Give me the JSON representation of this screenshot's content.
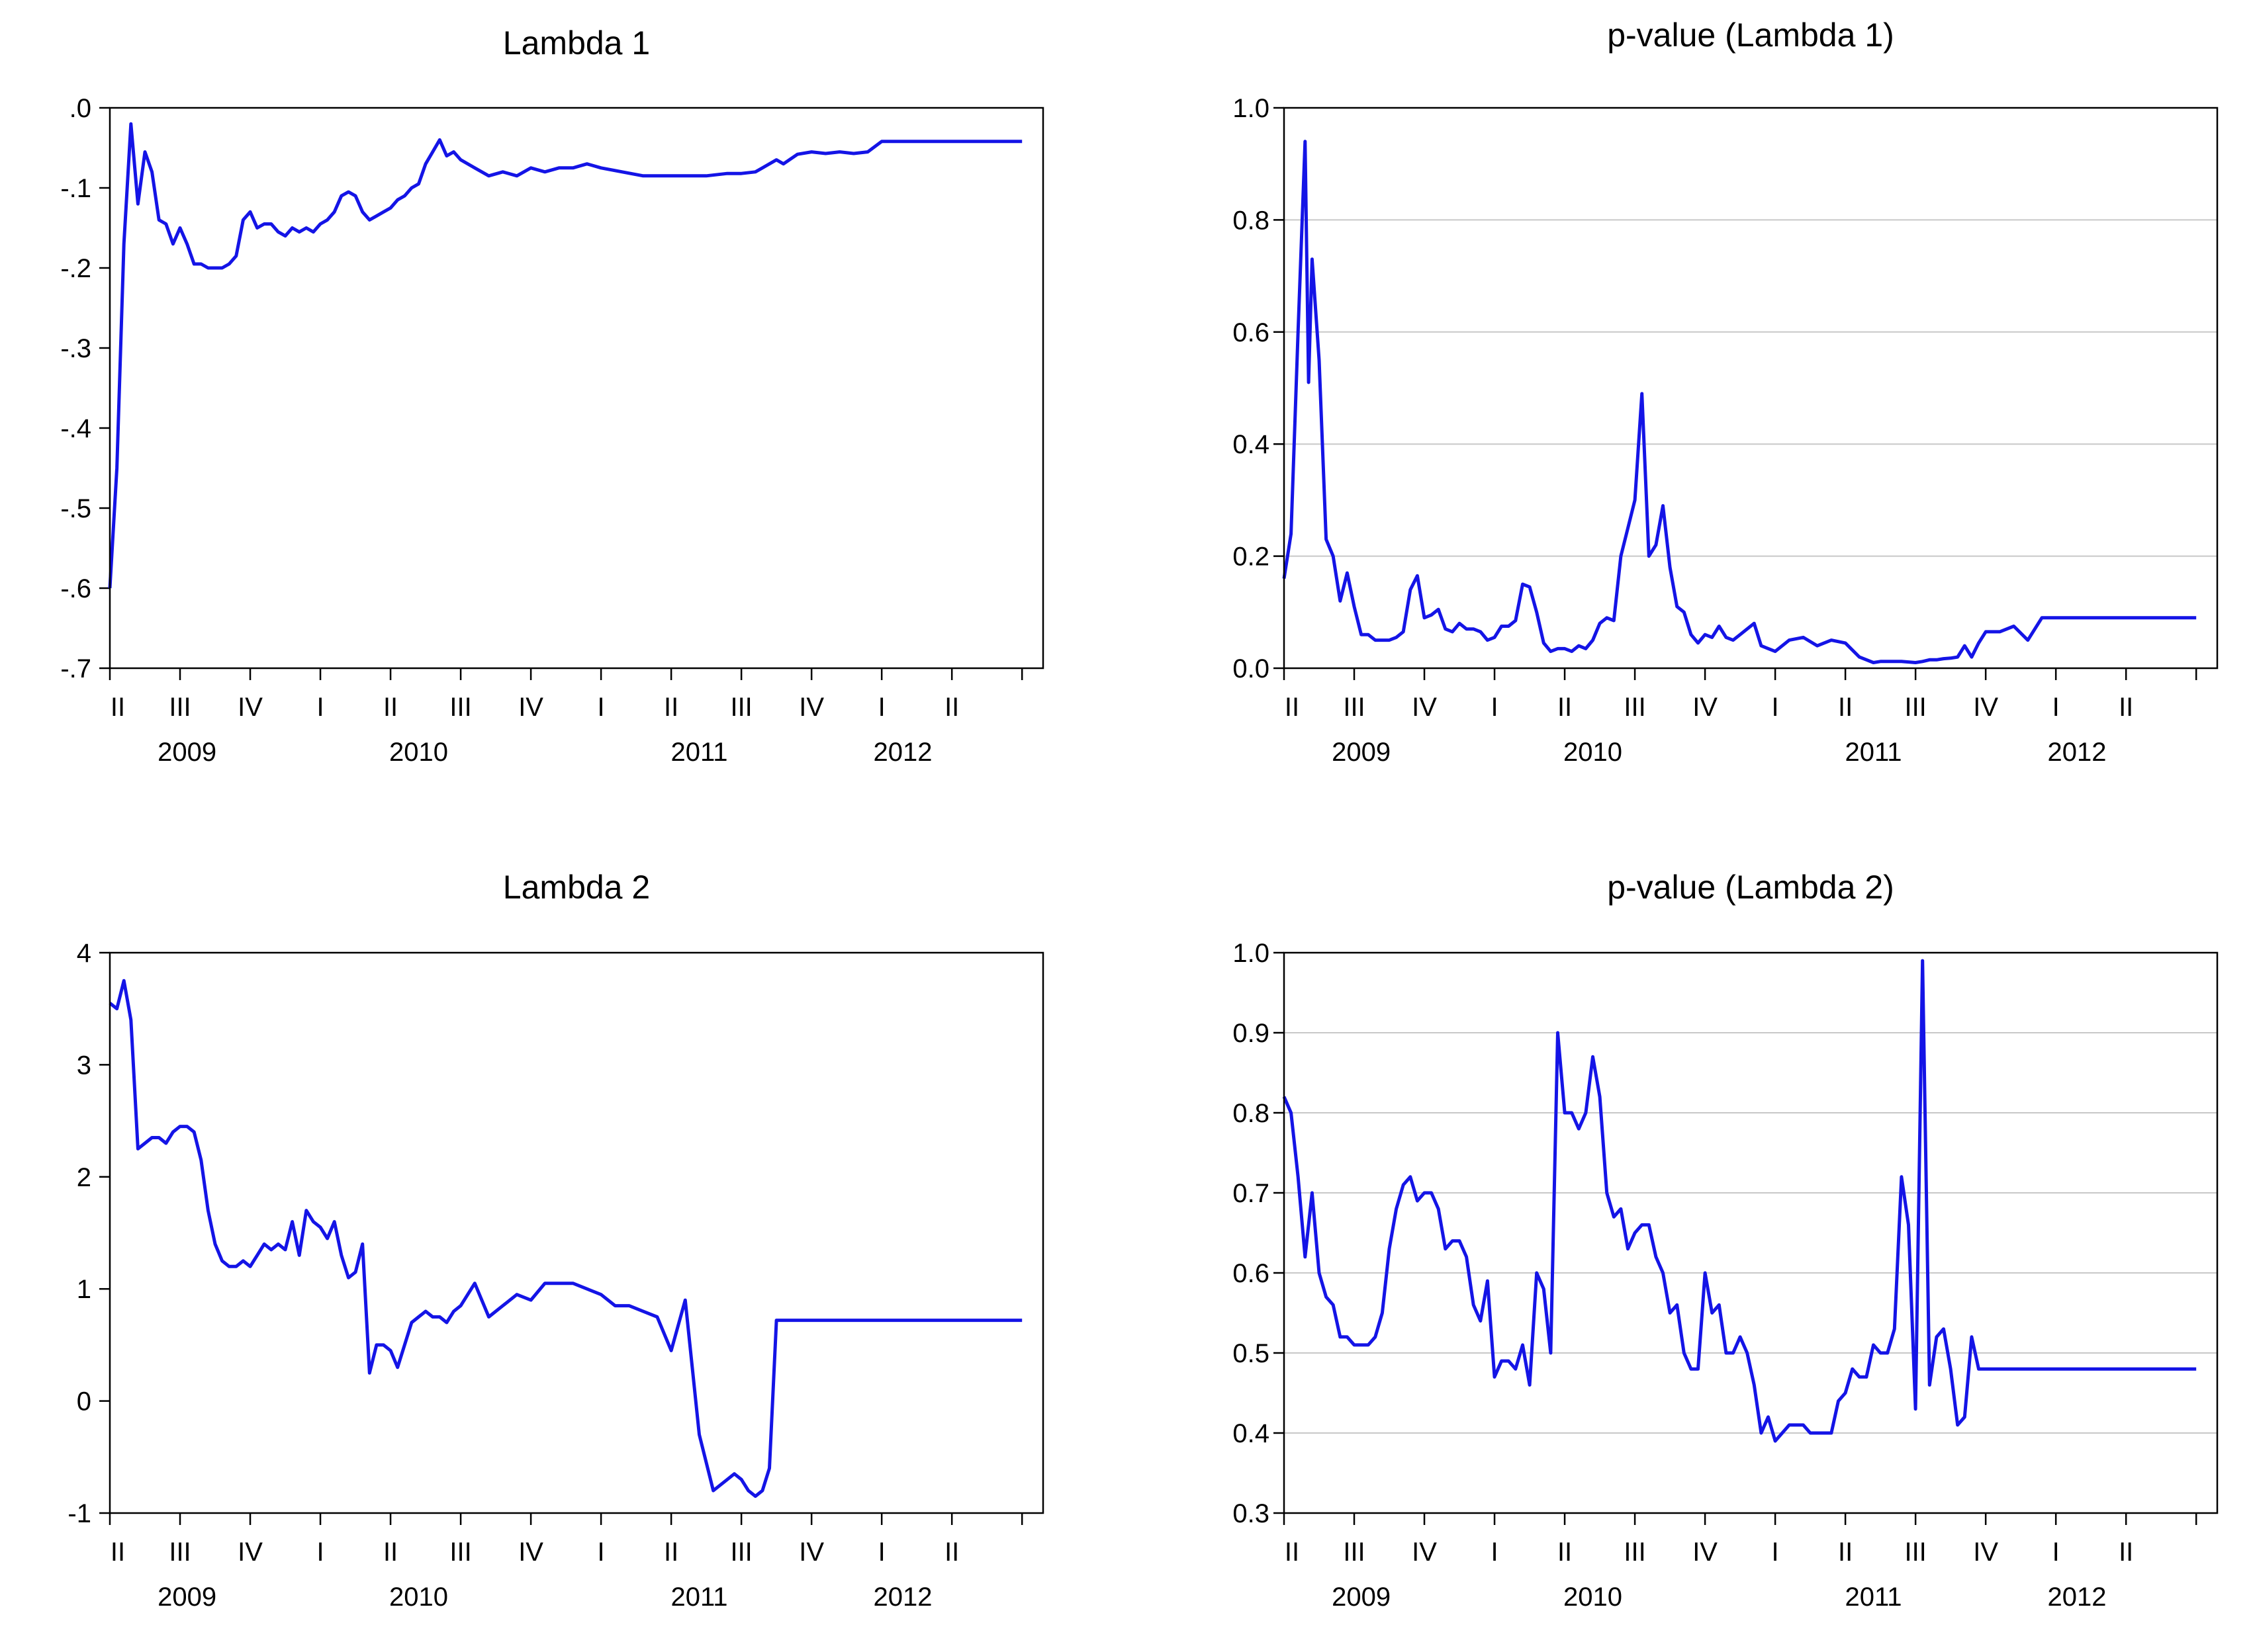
{
  "colors": {
    "line": "#1414e6",
    "grid": "#c8c8c8",
    "axis": "#000000",
    "background": "#ffffff"
  },
  "x_axis": {
    "quarter_labels": [
      "II",
      "III",
      "IV",
      "I",
      "II",
      "III",
      "IV",
      "I",
      "II",
      "III",
      "IV",
      "I",
      "II"
    ],
    "year_labels": [
      "2009",
      "2010",
      "2011",
      "2012"
    ]
  },
  "chart_data": [
    {
      "type": "line",
      "title": "Lambda 1",
      "ylim": [
        -0.7,
        0.0
      ],
      "yticks": [
        0.0,
        -0.1,
        -0.2,
        -0.3,
        -0.4,
        -0.5,
        -0.6,
        -0.7
      ],
      "ytick_labels": [
        ".0",
        "-.1",
        "-.2",
        "-.3",
        "-.4",
        "-.5",
        "-.6",
        "-.7"
      ],
      "grid": false,
      "x": [
        0.0,
        0.1,
        0.2,
        0.3,
        0.4,
        0.5,
        0.6,
        0.7,
        0.8,
        0.9,
        1.0,
        1.1,
        1.2,
        1.3,
        1.4,
        1.5,
        1.6,
        1.7,
        1.8,
        1.9,
        2.0,
        2.1,
        2.2,
        2.3,
        2.4,
        2.5,
        2.6,
        2.7,
        2.8,
        2.9,
        3.0,
        3.1,
        3.2,
        3.3,
        3.4,
        3.5,
        3.6,
        3.7,
        3.8,
        3.9,
        4.0,
        4.1,
        4.2,
        4.3,
        4.4,
        4.5,
        4.6,
        4.7,
        4.8,
        4.9,
        5.0,
        5.2,
        5.4,
        5.6,
        5.8,
        6.0,
        6.2,
        6.4,
        6.6,
        6.8,
        7.0,
        7.3,
        7.6,
        7.9,
        8.2,
        8.5,
        8.8,
        9.0,
        9.2,
        9.3,
        9.5,
        9.6,
        9.8,
        10.0,
        10.2,
        10.4,
        10.6,
        10.8,
        11.0,
        11.5,
        12.0,
        12.5,
        13.0
      ],
      "y": [
        -0.6,
        -0.45,
        -0.17,
        -0.02,
        -0.12,
        -0.055,
        -0.08,
        -0.14,
        -0.145,
        -0.17,
        -0.15,
        -0.17,
        -0.195,
        -0.195,
        -0.2,
        -0.2,
        -0.2,
        -0.195,
        -0.185,
        -0.14,
        -0.13,
        -0.15,
        -0.145,
        -0.145,
        -0.155,
        -0.16,
        -0.15,
        -0.155,
        -0.15,
        -0.155,
        -0.145,
        -0.14,
        -0.13,
        -0.11,
        -0.105,
        -0.11,
        -0.13,
        -0.14,
        -0.135,
        -0.13,
        -0.125,
        -0.115,
        -0.11,
        -0.1,
        -0.095,
        -0.07,
        -0.055,
        -0.04,
        -0.06,
        -0.055,
        -0.065,
        -0.075,
        -0.085,
        -0.08,
        -0.085,
        -0.075,
        -0.08,
        -0.075,
        -0.075,
        -0.07,
        -0.075,
        -0.08,
        -0.085,
        -0.085,
        -0.085,
        -0.085,
        -0.082,
        -0.082,
        -0.08,
        -0.075,
        -0.065,
        -0.07,
        -0.058,
        -0.055,
        -0.057,
        -0.055,
        -0.057,
        -0.055,
        -0.042,
        -0.042,
        -0.042,
        -0.042,
        -0.042
      ]
    },
    {
      "type": "line",
      "title": "p-value (Lambda 1)",
      "ylim": [
        0.0,
        1.0
      ],
      "yticks": [
        0.0,
        0.2,
        0.4,
        0.6,
        0.8,
        1.0
      ],
      "ytick_labels": [
        "0.0",
        "0.2",
        "0.4",
        "0.6",
        "0.8",
        "1.0"
      ],
      "grid": true,
      "x": [
        0.0,
        0.1,
        0.2,
        0.3,
        0.35,
        0.4,
        0.5,
        0.6,
        0.7,
        0.8,
        0.9,
        1.0,
        1.1,
        1.2,
        1.3,
        1.4,
        1.5,
        1.6,
        1.7,
        1.8,
        1.9,
        2.0,
        2.1,
        2.2,
        2.3,
        2.4,
        2.5,
        2.6,
        2.7,
        2.8,
        2.9,
        3.0,
        3.1,
        3.2,
        3.3,
        3.4,
        3.5,
        3.6,
        3.7,
        3.8,
        3.9,
        4.0,
        4.1,
        4.2,
        4.3,
        4.4,
        4.5,
        4.6,
        4.7,
        4.8,
        4.9,
        5.0,
        5.1,
        5.2,
        5.3,
        5.4,
        5.5,
        5.6,
        5.7,
        5.8,
        5.9,
        6.0,
        6.1,
        6.2,
        6.3,
        6.4,
        6.5,
        6.6,
        6.7,
        6.8,
        7.0,
        7.2,
        7.4,
        7.6,
        7.8,
        8.0,
        8.2,
        8.4,
        8.5,
        8.6,
        8.8,
        9.0,
        9.1,
        9.2,
        9.3,
        9.4,
        9.5,
        9.6,
        9.7,
        9.8,
        9.9,
        10.0,
        10.2,
        10.4,
        10.6,
        10.8,
        11.0,
        11.5,
        12.0,
        12.5,
        13.0
      ],
      "y": [
        0.16,
        0.24,
        0.6,
        0.94,
        0.51,
        0.73,
        0.55,
        0.23,
        0.2,
        0.12,
        0.17,
        0.11,
        0.06,
        0.06,
        0.05,
        0.05,
        0.05,
        0.055,
        0.065,
        0.14,
        0.165,
        0.09,
        0.095,
        0.105,
        0.07,
        0.065,
        0.08,
        0.07,
        0.07,
        0.065,
        0.05,
        0.055,
        0.075,
        0.075,
        0.085,
        0.15,
        0.145,
        0.1,
        0.045,
        0.03,
        0.035,
        0.035,
        0.03,
        0.04,
        0.035,
        0.05,
        0.08,
        0.09,
        0.085,
        0.2,
        0.25,
        0.3,
        0.49,
        0.2,
        0.22,
        0.29,
        0.18,
        0.11,
        0.1,
        0.06,
        0.045,
        0.06,
        0.055,
        0.075,
        0.055,
        0.05,
        0.06,
        0.07,
        0.08,
        0.04,
        0.03,
        0.05,
        0.055,
        0.04,
        0.05,
        0.045,
        0.02,
        0.01,
        0.012,
        0.012,
        0.012,
        0.01,
        0.012,
        0.015,
        0.015,
        0.017,
        0.018,
        0.02,
        0.04,
        0.02,
        0.045,
        0.065,
        0.065,
        0.075,
        0.05,
        0.09,
        0.09,
        0.09,
        0.09,
        0.09,
        0.09
      ]
    },
    {
      "type": "line",
      "title": "Lambda 2",
      "ylim": [
        -1,
        4
      ],
      "yticks": [
        4,
        3,
        2,
        1,
        0,
        -1
      ],
      "ytick_labels": [
        "4",
        "3",
        "2",
        "1",
        "0",
        "-1"
      ],
      "grid": false,
      "x": [
        0.0,
        0.1,
        0.2,
        0.3,
        0.4,
        0.5,
        0.6,
        0.7,
        0.8,
        0.9,
        1.0,
        1.1,
        1.2,
        1.3,
        1.4,
        1.5,
        1.6,
        1.7,
        1.8,
        1.9,
        2.0,
        2.1,
        2.2,
        2.3,
        2.4,
        2.5,
        2.6,
        2.7,
        2.8,
        2.9,
        3.0,
        3.1,
        3.2,
        3.3,
        3.4,
        3.5,
        3.6,
        3.7,
        3.8,
        3.9,
        4.0,
        4.1,
        4.2,
        4.3,
        4.4,
        4.5,
        4.6,
        4.7,
        4.8,
        4.9,
        5.0,
        5.2,
        5.4,
        5.6,
        5.8,
        6.0,
        6.2,
        6.4,
        6.6,
        6.8,
        7.0,
        7.2,
        7.4,
        7.6,
        7.8,
        8.0,
        8.2,
        8.4,
        8.6,
        8.8,
        8.9,
        9.0,
        9.1,
        9.2,
        9.3,
        9.4,
        9.5,
        9.6,
        9.7,
        9.75,
        10.0,
        11.0,
        12.0,
        13.0
      ],
      "y": [
        3.55,
        3.5,
        3.75,
        3.4,
        2.25,
        2.3,
        2.35,
        2.35,
        2.3,
        2.4,
        2.45,
        2.45,
        2.4,
        2.15,
        1.7,
        1.4,
        1.25,
        1.2,
        1.2,
        1.25,
        1.2,
        1.3,
        1.4,
        1.35,
        1.4,
        1.35,
        1.6,
        1.3,
        1.7,
        1.6,
        1.55,
        1.45,
        1.6,
        1.3,
        1.1,
        1.15,
        1.4,
        0.25,
        0.5,
        0.5,
        0.45,
        0.3,
        0.5,
        0.7,
        0.75,
        0.8,
        0.75,
        0.75,
        0.7,
        0.8,
        0.85,
        1.05,
        0.75,
        0.85,
        0.95,
        0.9,
        1.05,
        1.05,
        1.05,
        1.0,
        0.95,
        0.85,
        0.85,
        0.8,
        0.75,
        0.45,
        0.9,
        -0.3,
        -0.8,
        -0.7,
        -0.65,
        -0.7,
        -0.8,
        -0.85,
        -0.8,
        -0.6,
        0.72,
        0.72,
        0.72,
        0.72,
        0.72,
        0.72,
        0.72,
        0.72
      ]
    },
    {
      "type": "line",
      "title": "p-value (Lambda 2)",
      "ylim": [
        0.3,
        1.0
      ],
      "yticks": [
        0.3,
        0.4,
        0.5,
        0.6,
        0.7,
        0.8,
        0.9,
        1.0
      ],
      "ytick_labels": [
        "0.3",
        "0.4",
        "0.5",
        "0.6",
        "0.7",
        "0.8",
        "0.9",
        "1.0"
      ],
      "grid": true,
      "x": [
        0.0,
        0.1,
        0.2,
        0.3,
        0.4,
        0.5,
        0.6,
        0.7,
        0.8,
        0.9,
        1.0,
        1.1,
        1.2,
        1.3,
        1.4,
        1.5,
        1.6,
        1.7,
        1.8,
        1.9,
        2.0,
        2.1,
        2.2,
        2.3,
        2.4,
        2.5,
        2.6,
        2.7,
        2.8,
        2.9,
        3.0,
        3.1,
        3.2,
        3.3,
        3.4,
        3.5,
        3.6,
        3.7,
        3.8,
        3.9,
        4.0,
        4.1,
        4.2,
        4.3,
        4.4,
        4.5,
        4.6,
        4.7,
        4.8,
        4.9,
        5.0,
        5.1,
        5.2,
        5.3,
        5.4,
        5.5,
        5.6,
        5.7,
        5.8,
        5.9,
        6.0,
        6.1,
        6.2,
        6.3,
        6.4,
        6.5,
        6.6,
        6.7,
        6.8,
        6.9,
        7.0,
        7.1,
        7.2,
        7.3,
        7.4,
        7.5,
        7.6,
        7.7,
        7.8,
        7.9,
        8.0,
        8.1,
        8.2,
        8.3,
        8.4,
        8.5,
        8.6,
        8.7,
        8.8,
        8.9,
        9.0,
        9.1,
        9.2,
        9.3,
        9.4,
        9.5,
        9.6,
        9.7,
        9.8,
        9.9,
        10.0,
        10.2,
        10.4,
        10.6,
        10.8,
        11.0,
        11.5,
        12.0,
        12.5,
        13.0
      ],
      "y": [
        0.82,
        0.8,
        0.72,
        0.62,
        0.7,
        0.6,
        0.57,
        0.56,
        0.52,
        0.52,
        0.51,
        0.51,
        0.51,
        0.52,
        0.55,
        0.63,
        0.68,
        0.71,
        0.72,
        0.69,
        0.7,
        0.7,
        0.68,
        0.63,
        0.64,
        0.64,
        0.62,
        0.56,
        0.54,
        0.59,
        0.47,
        0.49,
        0.49,
        0.48,
        0.51,
        0.46,
        0.6,
        0.58,
        0.5,
        0.9,
        0.8,
        0.8,
        0.78,
        0.8,
        0.87,
        0.82,
        0.7,
        0.67,
        0.68,
        0.63,
        0.65,
        0.66,
        0.66,
        0.62,
        0.6,
        0.55,
        0.56,
        0.5,
        0.48,
        0.48,
        0.6,
        0.55,
        0.56,
        0.5,
        0.5,
        0.52,
        0.5,
        0.46,
        0.4,
        0.42,
        0.39,
        0.4,
        0.41,
        0.41,
        0.41,
        0.4,
        0.4,
        0.4,
        0.4,
        0.44,
        0.45,
        0.48,
        0.47,
        0.47,
        0.51,
        0.5,
        0.5,
        0.53,
        0.72,
        0.66,
        0.43,
        0.99,
        0.46,
        0.52,
        0.53,
        0.48,
        0.41,
        0.42,
        0.52,
        0.48,
        0.48,
        0.48,
        0.48,
        0.48,
        0.48,
        0.48,
        0.48,
        0.48,
        0.48,
        0.48
      ]
    }
  ]
}
